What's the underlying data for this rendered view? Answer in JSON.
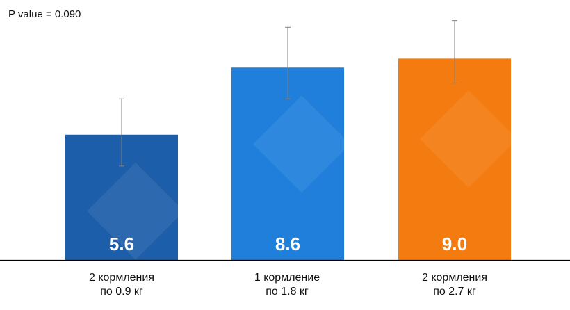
{
  "annotation": "P value = 0.090",
  "chart_data": {
    "type": "bar",
    "categories": [
      [
        "2 кормления",
        "по 0.9 кг"
      ],
      [
        "1 кормление",
        "по 1.8 кг"
      ],
      [
        "2 кормления",
        "по 2.7 кг"
      ]
    ],
    "values": [
      5.6,
      8.6,
      9.0
    ],
    "value_labels": [
      "5.6",
      "8.6",
      "9.0"
    ],
    "error_bars": [
      {
        "low": 4.2,
        "high": 7.2
      },
      {
        "low": 7.2,
        "high": 10.4
      },
      {
        "low": 7.9,
        "high": 10.7
      }
    ],
    "colors": [
      "#1c5ea9",
      "#1f7fdb",
      "#f47b0f"
    ],
    "ylim": [
      0,
      11.0
    ],
    "grid": false,
    "legend": "none"
  }
}
